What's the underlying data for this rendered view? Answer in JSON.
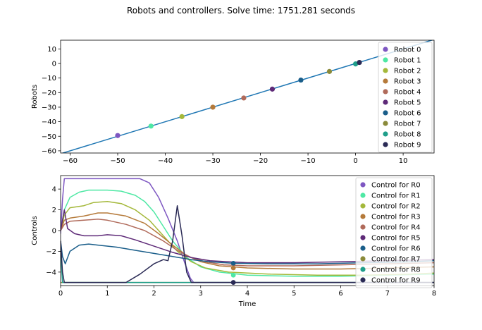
{
  "title": "Robots and controllers. Solve time: 1751.281 seconds",
  "chart_data": [
    {
      "type": "scatter",
      "ylabel": "Robots",
      "xlabel": "",
      "xlim": [
        -62,
        16.5
      ],
      "ylim": [
        -61.5,
        16
      ],
      "xticks": [
        -60,
        -50,
        -40,
        -30,
        -20,
        -10,
        0,
        10
      ],
      "yticks": [
        10,
        0,
        -10,
        -20,
        -30,
        -40,
        -50,
        -60
      ],
      "xtick_labels": [
        "−60",
        "−50",
        "−40",
        "−30",
        "−20",
        "−10",
        "0",
        "10"
      ],
      "ytick_labels": [
        "10",
        "0",
        "−10",
        "−20",
        "−30",
        "−40",
        "−50",
        "−60"
      ],
      "line": {
        "x": [
          -62,
          16.5
        ],
        "y": [
          -62,
          16.5
        ],
        "color": "#1f77b4"
      },
      "legend_position": "right",
      "series": [
        {
          "name": "Robot 0",
          "color": "#7e57c2",
          "x": -50.0,
          "y": -49.5
        },
        {
          "name": "Robot 1",
          "color": "#4ee8a4",
          "x": -43.0,
          "y": -43.0
        },
        {
          "name": "Robot 2",
          "color": "#a4b83a",
          "x": -36.5,
          "y": -36.5
        },
        {
          "name": "Robot 3",
          "color": "#b57a3a",
          "x": -30.0,
          "y": -30.0
        },
        {
          "name": "Robot 4",
          "color": "#b06a5a",
          "x": -23.5,
          "y": -23.7
        },
        {
          "name": "Robot 5",
          "color": "#5e2a78",
          "x": -17.5,
          "y": -17.6
        },
        {
          "name": "Robot 6",
          "color": "#1a5e8a",
          "x": -11.5,
          "y": -11.4
        },
        {
          "name": "Robot 7",
          "color": "#8a8a3a",
          "x": -5.5,
          "y": -5.5
        },
        {
          "name": "Robot 8",
          "color": "#1f9e8a",
          "x": 0.0,
          "y": -0.3
        },
        {
          "name": "Robot 9",
          "color": "#2a2a55",
          "x": 0.8,
          "y": 0.7
        }
      ]
    },
    {
      "type": "line",
      "ylabel": "Controls",
      "xlabel": "Time",
      "xlim": [
        0,
        8
      ],
      "ylim": [
        -5.3,
        5.3
      ],
      "xticks": [
        0,
        1,
        2,
        3,
        4,
        5,
        6,
        7,
        8
      ],
      "yticks": [
        4,
        2,
        0,
        -2,
        -4
      ],
      "xtick_labels": [
        "0",
        "1",
        "2",
        "3",
        "4",
        "5",
        "6",
        "7",
        "8"
      ],
      "ytick_labels": [
        "4",
        "2",
        "0",
        "−2",
        "−4"
      ],
      "legend_position": "right",
      "marker_time": 3.7,
      "series": [
        {
          "name": "Control for R0",
          "color": "#7e57c2",
          "x": [
            0,
            0.04,
            0.08,
            0.5,
            1.0,
            1.7,
            1.9,
            2.1,
            2.3,
            2.5,
            2.65,
            2.78,
            2.85,
            8
          ],
          "y": [
            -0.3,
            3.0,
            5.0,
            5.0,
            5.0,
            5.0,
            4.6,
            3.2,
            1.2,
            -1.0,
            -3.0,
            -4.6,
            -5.0,
            -5.0
          ]
        },
        {
          "name": "Control for R1",
          "color": "#4ee8a4",
          "x": [
            0,
            0.08,
            0.2,
            0.4,
            0.6,
            1.0,
            1.3,
            1.6,
            1.8,
            2.0,
            2.2,
            2.4,
            2.7,
            3.0,
            3.4,
            4.0,
            5.0,
            6.0,
            7.0,
            8.0
          ],
          "y": [
            0,
            2.0,
            3.2,
            3.7,
            3.9,
            3.9,
            3.8,
            3.4,
            2.8,
            1.8,
            0.4,
            -1.0,
            -2.6,
            -3.5,
            -4.0,
            -4.3,
            -4.4,
            -4.4,
            -4.3,
            -4.2
          ]
        },
        {
          "name": "Control for R2",
          "color": "#a4b83a",
          "x": [
            0,
            0.08,
            0.2,
            0.5,
            0.7,
            1.0,
            1.3,
            1.6,
            1.9,
            2.2,
            2.5,
            2.8,
            3.1,
            3.6,
            4.5,
            5.5,
            6.5,
            7.5,
            8.0
          ],
          "y": [
            0,
            1.5,
            2.2,
            2.4,
            2.7,
            2.8,
            2.6,
            2.0,
            1.0,
            -0.5,
            -2.0,
            -3.0,
            -3.6,
            -4.0,
            -4.2,
            -4.3,
            -4.3,
            -4.2,
            -4.1
          ]
        },
        {
          "name": "Control for R3",
          "color": "#b57a3a",
          "x": [
            0,
            0.08,
            0.2,
            0.5,
            0.8,
            1.0,
            1.4,
            1.8,
            2.1,
            2.4,
            2.7,
            3.0,
            3.4,
            4.0,
            5.0,
            6.0,
            7.0,
            8.0
          ],
          "y": [
            0,
            1.0,
            1.2,
            1.4,
            1.7,
            1.7,
            1.4,
            0.7,
            -0.3,
            -1.4,
            -2.4,
            -3.0,
            -3.4,
            -3.6,
            -3.7,
            -3.7,
            -3.6,
            -3.5
          ]
        },
        {
          "name": "Control for R4",
          "color": "#b06a5a",
          "x": [
            0,
            0.08,
            0.2,
            0.5,
            0.8,
            1.0,
            1.4,
            1.8,
            2.2,
            2.5,
            2.8,
            3.1,
            3.5,
            4.0,
            5.0,
            6.0,
            7.0,
            8.0
          ],
          "y": [
            0,
            0.6,
            0.9,
            1.0,
            1.1,
            1.0,
            0.6,
            0.0,
            -1.0,
            -1.9,
            -2.6,
            -3.0,
            -3.3,
            -3.4,
            -3.4,
            -3.3,
            -3.2,
            -3.1
          ]
        },
        {
          "name": "Control for R5",
          "color": "#5e2a78",
          "x": [
            0,
            0.08,
            0.15,
            0.3,
            0.5,
            0.8,
            1.0,
            1.3,
            1.6,
            2.0,
            2.4,
            2.8,
            3.2,
            3.6,
            4.0,
            5.0,
            6.0,
            7.0,
            8.0
          ],
          "y": [
            0,
            2.0,
            0.2,
            -0.3,
            -0.5,
            -0.5,
            -0.4,
            -0.5,
            -0.9,
            -1.5,
            -2.1,
            -2.6,
            -2.9,
            -3.0,
            -3.1,
            -3.1,
            -3.0,
            -2.9,
            -2.8
          ]
        },
        {
          "name": "Control for R6",
          "color": "#1a5e8a",
          "x": [
            0,
            0.04,
            0.1,
            0.2,
            0.4,
            0.6,
            0.8,
            1.2,
            1.6,
            2.0,
            2.4,
            2.8,
            3.2,
            3.7,
            4.5,
            5.5,
            6.5,
            7.5,
            8.0
          ],
          "y": [
            -1.0,
            -2.5,
            -3.2,
            -2.0,
            -1.4,
            -1.3,
            -1.4,
            -1.6,
            -1.9,
            -2.2,
            -2.5,
            -2.8,
            -3.0,
            -3.15,
            -3.2,
            -3.2,
            -3.1,
            -3.0,
            -2.9
          ]
        },
        {
          "name": "Control for R7",
          "color": "#8a8a3a",
          "x": [
            0,
            8
          ],
          "y": [
            -5.0,
            -5.0
          ]
        },
        {
          "name": "Control for R8",
          "color": "#1f9e8a",
          "x": [
            0,
            0.04,
            0.08,
            8
          ],
          "y": [
            -2.0,
            -5.0,
            -5.0,
            -5.0
          ]
        },
        {
          "name": "Control for R9",
          "color": "#2a2a55",
          "x": [
            0,
            0.04,
            0.08,
            1.4,
            1.7,
            2.0,
            2.2,
            2.3,
            2.4,
            2.5,
            2.6,
            2.7,
            2.8,
            3.0,
            8
          ],
          "y": [
            -1.0,
            -4.0,
            -5.0,
            -5.0,
            -4.2,
            -3.2,
            -2.8,
            -2.9,
            -1.0,
            2.4,
            -0.5,
            -4.0,
            -5.0,
            -5.0,
            -5.0
          ]
        }
      ],
      "markers": [
        {
          "x": 3.7,
          "y": -3.15,
          "color": "#1a5e8a"
        },
        {
          "x": 3.7,
          "y": -5.0,
          "color": "#2a2a55"
        },
        {
          "x": 3.7,
          "y": -4.3,
          "color": "#4ee8a4"
        },
        {
          "x": 3.7,
          "y": -3.6,
          "color": "#b57a3a"
        }
      ]
    }
  ]
}
